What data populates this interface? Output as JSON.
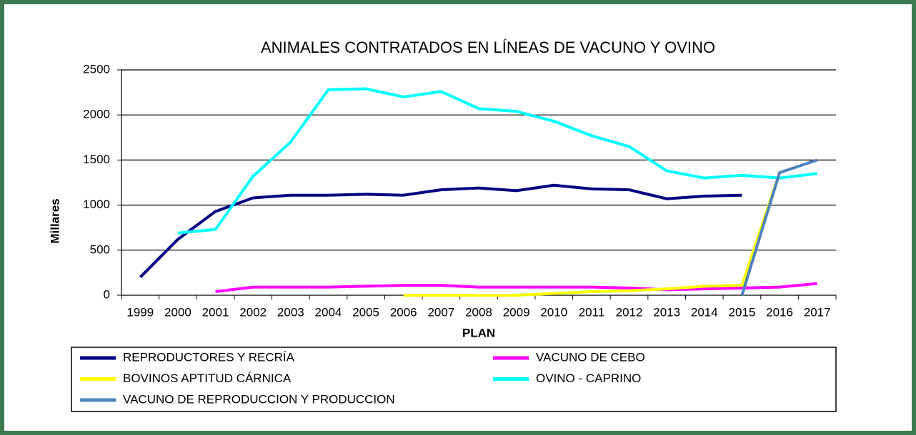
{
  "chart_data": {
    "type": "line",
    "title": "ANIMALES CONTRATADOS EN LÍNEAS DE VACUNO Y OVINO",
    "y_label": "Millares",
    "x_label": "PLAN",
    "categories": [
      "1999",
      "2000",
      "2001",
      "2002",
      "2003",
      "2004",
      "2005",
      "2006",
      "2007",
      "2008",
      "2009",
      "2010",
      "2011",
      "2012",
      "2013",
      "2014",
      "2015",
      "2016",
      "2017"
    ],
    "ylim": [
      0,
      2500
    ],
    "yticks": [
      0,
      500,
      1000,
      1500,
      2000,
      2500
    ],
    "grid": true,
    "series": [
      {
        "name": "REPRODUCTORES Y RECRÍA",
        "color": "#000080",
        "values": [
          200,
          620,
          930,
          1080,
          1110,
          1110,
          1120,
          1110,
          1170,
          1190,
          1160,
          1220,
          1180,
          1170,
          1070,
          1100,
          1110,
          null,
          null
        ]
      },
      {
        "name": "VACUNO DE CEBO",
        "color": "#ff00ff",
        "values": [
          null,
          null,
          40,
          90,
          90,
          90,
          100,
          110,
          110,
          90,
          90,
          90,
          90,
          80,
          60,
          70,
          80,
          90,
          130
        ]
      },
      {
        "name": "BOVINOS APTITUD CÁRNICA",
        "color": "#ffff00",
        "values": [
          null,
          null,
          null,
          null,
          null,
          null,
          null,
          0,
          0,
          0,
          0,
          20,
          40,
          50,
          70,
          100,
          110,
          1360,
          null
        ]
      },
      {
        "name": "OVINO - CAPRINO",
        "color": "#00ffff",
        "values": [
          null,
          690,
          730,
          1320,
          1700,
          2280,
          2290,
          2200,
          2260,
          2070,
          2040,
          1930,
          1770,
          1650,
          1380,
          1300,
          1330,
          1300,
          1350
        ]
      },
      {
        "name": "VACUNO DE REPRODUCCION Y PRODUCCION",
        "color": "#4f81bd",
        "values": [
          null,
          null,
          null,
          null,
          null,
          null,
          null,
          null,
          null,
          null,
          null,
          null,
          null,
          null,
          null,
          null,
          0,
          1360,
          1500
        ]
      }
    ]
  }
}
